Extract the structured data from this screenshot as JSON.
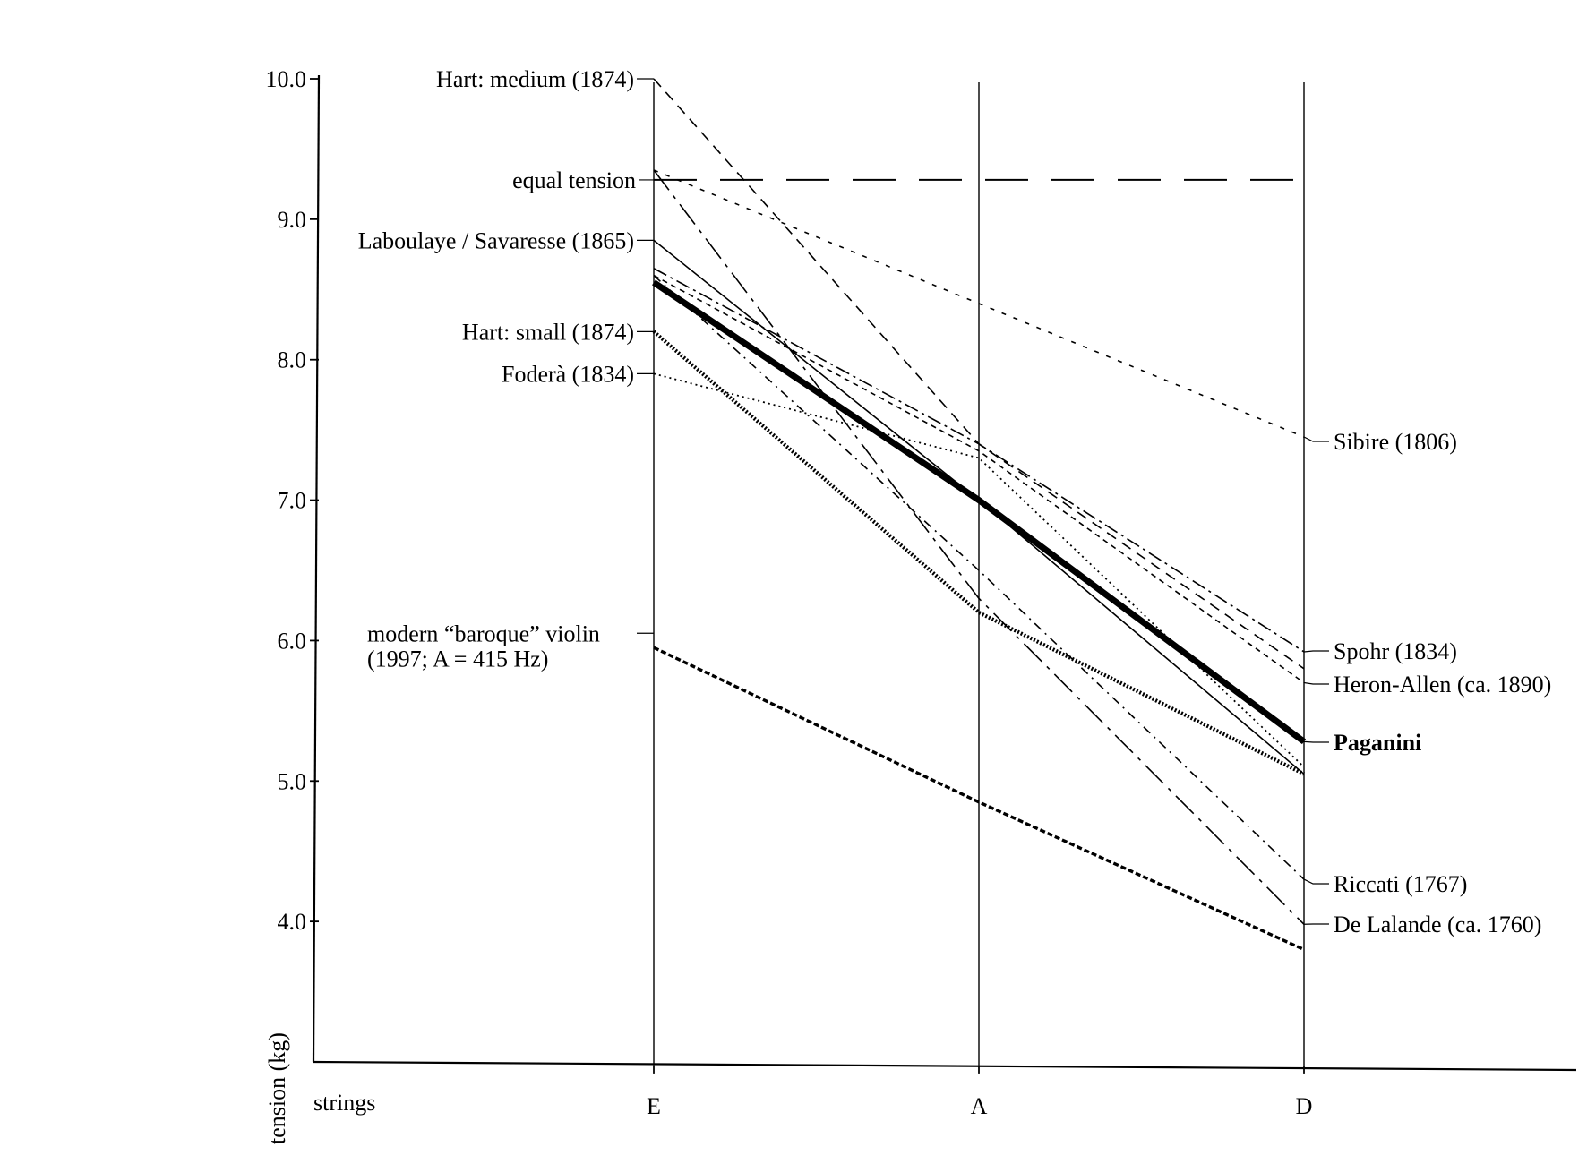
{
  "chart_data": {
    "type": "line",
    "title": "",
    "xlabel": "strings",
    "ylabel": "tension (kg)",
    "categories": [
      "E",
      "A",
      "D"
    ],
    "ylim": [
      3.0,
      10.0
    ],
    "yticks": [
      "10.0",
      "9.0",
      "8.0",
      "7.0",
      "6.0",
      "5.0",
      "4.0"
    ],
    "grid": false,
    "reference_line": {
      "name": "equal tension",
      "value": 9.28
    },
    "series": [
      {
        "name": "Hart: medium (1874)",
        "values": [
          10.0,
          7.4,
          5.8
        ],
        "style": "dashed",
        "label_side": "left"
      },
      {
        "name": "Laboulaye / Savaresse (1865)",
        "values": [
          8.85,
          7.0,
          5.05
        ],
        "style": "solid-thin",
        "label_side": "left"
      },
      {
        "name": "Hart: small (1874)",
        "values": [
          8.2,
          6.2,
          5.05
        ],
        "style": "heavy-dotted",
        "label_side": "left"
      },
      {
        "name": "Foderà (1834)",
        "values": [
          7.9,
          7.3,
          5.1
        ],
        "style": "dotted",
        "label_side": "left"
      },
      {
        "name": "modern “baroque” violin (1997; A = 415 Hz)",
        "label_lines": [
          "modern “baroque” violin",
          "(1997; A = 415 Hz)"
        ],
        "values": [
          5.95,
          4.85,
          3.8
        ],
        "style": "heavy-dashed",
        "label_side": "left"
      },
      {
        "name": "Sibire (1806)",
        "values": [
          9.35,
          8.4,
          7.45
        ],
        "style": "short-dashed",
        "label_side": "right"
      },
      {
        "name": "Spohr (1834)",
        "values": [
          8.65,
          7.4,
          5.92
        ],
        "style": "dash-dot",
        "label_side": "right"
      },
      {
        "name": "Heron-Allen (ca. 1890)",
        "values": [
          8.6,
          7.35,
          5.7
        ],
        "style": "fine-dashed",
        "label_side": "right"
      },
      {
        "name": "Paganini",
        "values": [
          8.55,
          7.0,
          5.28
        ],
        "style": "bold",
        "label_side": "right"
      },
      {
        "name": "Riccati (1767)",
        "values": [
          8.6,
          6.5,
          4.3
        ],
        "style": "dashed-dot-fine",
        "label_side": "right"
      },
      {
        "name": "De Lalande (ca. 1760)",
        "values": [
          9.35,
          6.3,
          3.98
        ],
        "style": "long-dash-dot",
        "label_side": "right"
      }
    ]
  }
}
